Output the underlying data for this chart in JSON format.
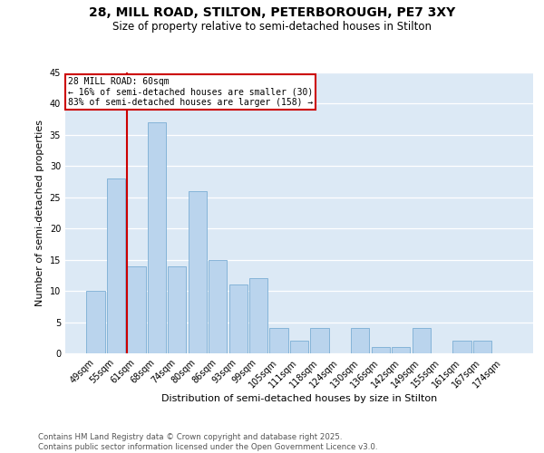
{
  "title1": "28, MILL ROAD, STILTON, PETERBOROUGH, PE7 3XY",
  "title2": "Size of property relative to semi-detached houses in Stilton",
  "xlabel": "Distribution of semi-detached houses by size in Stilton",
  "ylabel": "Number of semi-detached properties",
  "categories": [
    "49sqm",
    "55sqm",
    "61sqm",
    "68sqm",
    "74sqm",
    "80sqm",
    "86sqm",
    "93sqm",
    "99sqm",
    "105sqm",
    "111sqm",
    "118sqm",
    "124sqm",
    "130sqm",
    "136sqm",
    "142sqm",
    "149sqm",
    "155sqm",
    "161sqm",
    "167sqm",
    "174sqm"
  ],
  "values": [
    10,
    28,
    14,
    37,
    14,
    26,
    15,
    11,
    12,
    4,
    2,
    4,
    0,
    4,
    1,
    1,
    4,
    0,
    2,
    2,
    0
  ],
  "bar_color": "#bad4ed",
  "bar_edge_color": "#7aadd4",
  "subject_label": "28 MILL ROAD: 60sqm",
  "annotation_line1": "← 16% of semi-detached houses are smaller (30)",
  "annotation_line2": "83% of semi-detached houses are larger (158) →",
  "annotation_box_color": "#ffffff",
  "annotation_box_edge": "#cc0000",
  "vline_color": "#cc0000",
  "ylim": [
    0,
    45
  ],
  "yticks": [
    0,
    5,
    10,
    15,
    20,
    25,
    30,
    35,
    40,
    45
  ],
  "background_color": "#dce9f5",
  "grid_color": "#ffffff",
  "footer1": "Contains HM Land Registry data © Crown copyright and database right 2025.",
  "footer2": "Contains public sector information licensed under the Open Government Licence v3.0."
}
